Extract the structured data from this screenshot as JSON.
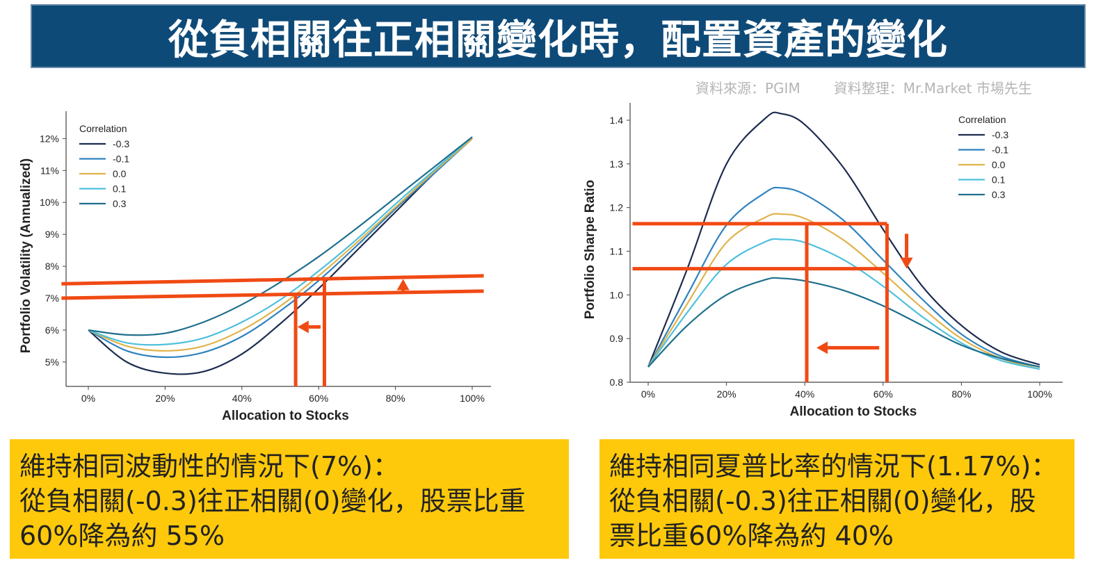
{
  "header": {
    "title": "從負相關往正相關變化時，配置資產的變化",
    "source": "資料來源：PGIM",
    "compiled_by": "資料整理：Mr.Market 市場先生"
  },
  "colors": {
    "banner": "#0e4a78",
    "annotation": "#f04a14",
    "note_bg": "#fec90b",
    "-0.3": "#1c2b4e",
    "-0.1": "#2f82bf",
    "0.0": "#e0b24a",
    "0.1": "#4ec0dd",
    "0.3": "#1e6f8c"
  },
  "chart_data": [
    {
      "type": "line",
      "xlabel": "Allocation to Stocks",
      "ylabel": "Portfolio Volatility (Annualized)",
      "x_ticks": [
        "0%",
        "20%",
        "40%",
        "60%",
        "80%",
        "100%"
      ],
      "y_ticks": [
        "5%",
        "6%",
        "7%",
        "8%",
        "9%",
        "10%",
        "11%",
        "12%"
      ],
      "xlim": [
        0,
        100
      ],
      "ylim": [
        4.2,
        12.4
      ],
      "legend_title": "Correlation",
      "legend_position": "top-left",
      "x": [
        0,
        10,
        20,
        30,
        40,
        50,
        60,
        70,
        80,
        90,
        100
      ],
      "series": [
        {
          "name": "-0.3",
          "values": [
            6.0,
            5.0,
            4.65,
            4.7,
            5.25,
            6.2,
            7.3,
            8.5,
            9.7,
            10.9,
            12.0
          ]
        },
        {
          "name": "-0.1",
          "values": [
            6.0,
            5.35,
            5.15,
            5.3,
            5.8,
            6.6,
            7.55,
            8.65,
            9.8,
            10.9,
            12.0
          ]
        },
        {
          "name": "0.0",
          "values": [
            6.0,
            5.5,
            5.35,
            5.5,
            6.0,
            6.75,
            7.7,
            8.75,
            9.85,
            10.95,
            12.0
          ]
        },
        {
          "name": "0.1",
          "values": [
            6.0,
            5.6,
            5.55,
            5.75,
            6.25,
            6.95,
            7.85,
            8.85,
            9.95,
            11.0,
            12.05
          ]
        },
        {
          "name": "0.3",
          "values": [
            6.0,
            5.85,
            5.9,
            6.25,
            6.8,
            7.5,
            8.3,
            9.2,
            10.15,
            11.1,
            12.05
          ]
        }
      ],
      "annotations": {
        "lines": [
          {
            "from": [
              -7,
              7.0
            ],
            "to": [
              103,
              7.22
            ]
          },
          {
            "from": [
              -7,
              7.45
            ],
            "to": [
              103,
              7.7
            ]
          }
        ],
        "verticals": [
          54,
          61.5
        ],
        "arrows": [
          {
            "from": [
              60.5,
              6.1
            ],
            "to": [
              54.5,
              6.1
            ]
          },
          {
            "from": [
              82,
              7.18
            ],
            "to": [
              82,
              7.6
            ]
          }
        ]
      }
    },
    {
      "type": "line",
      "xlabel": "Allocation to Stocks",
      "ylabel": "Portfolio Sharpe Ratio",
      "x_ticks": [
        "0%",
        "20%",
        "40%",
        "60%",
        "80%",
        "100%"
      ],
      "y_ticks": [
        "0.8",
        "0.9",
        "1.0",
        "1.1",
        "1.2",
        "1.3",
        "1.4"
      ],
      "xlim": [
        0,
        100
      ],
      "ylim": [
        0.8,
        1.45
      ],
      "legend_title": "Correlation",
      "legend_position": "top-right",
      "x": [
        0,
        10,
        20,
        30,
        34,
        40,
        50,
        60,
        70,
        80,
        90,
        100
      ],
      "series": [
        {
          "name": "-0.3",
          "values": [
            0.835,
            1.06,
            1.3,
            1.405,
            1.415,
            1.39,
            1.29,
            1.15,
            1.02,
            0.93,
            0.87,
            0.84
          ]
        },
        {
          "name": "-0.1",
          "values": [
            0.835,
            1.0,
            1.16,
            1.235,
            1.245,
            1.23,
            1.17,
            1.08,
            0.99,
            0.91,
            0.86,
            0.835
          ]
        },
        {
          "name": "0.0",
          "values": [
            0.835,
            0.98,
            1.12,
            1.178,
            1.185,
            1.175,
            1.125,
            1.05,
            0.97,
            0.9,
            0.855,
            0.83
          ]
        },
        {
          "name": "0.1",
          "values": [
            0.835,
            0.96,
            1.07,
            1.122,
            1.127,
            1.12,
            1.08,
            1.02,
            0.95,
            0.89,
            0.85,
            0.83
          ]
        },
        {
          "name": "0.3",
          "values": [
            0.835,
            0.93,
            1.0,
            1.035,
            1.038,
            1.032,
            1.01,
            0.975,
            0.93,
            0.885,
            0.855,
            0.835
          ]
        }
      ],
      "annotations": {
        "lines": [
          {
            "from": [
              -4,
              1.163
            ],
            "to": [
              61,
              1.163
            ]
          },
          {
            "from": [
              -4,
              1.06
            ],
            "to": [
              61,
              1.06
            ]
          }
        ],
        "verticals": [
          40.5,
          61
        ],
        "arrows": [
          {
            "from": [
              59,
              0.879
            ],
            "to": [
              43,
              0.879
            ]
          },
          {
            "from": [
              66,
              1.14
            ],
            "to": [
              66,
              1.06
            ]
          }
        ]
      }
    }
  ],
  "notes": {
    "left": {
      "line1": "維持相同波動性的情況下(7%)：",
      "line2": "從負相關(-0.3)往正相關(0)變化，股票比重",
      "line3": "60%降為約 55%"
    },
    "right": {
      "line1": "維持相同夏普比率的情況下(1.17%)：",
      "line2": "從負相關(-0.3)往正相關(0)變化，股",
      "line3": "票比重60%降為約 40%"
    }
  }
}
